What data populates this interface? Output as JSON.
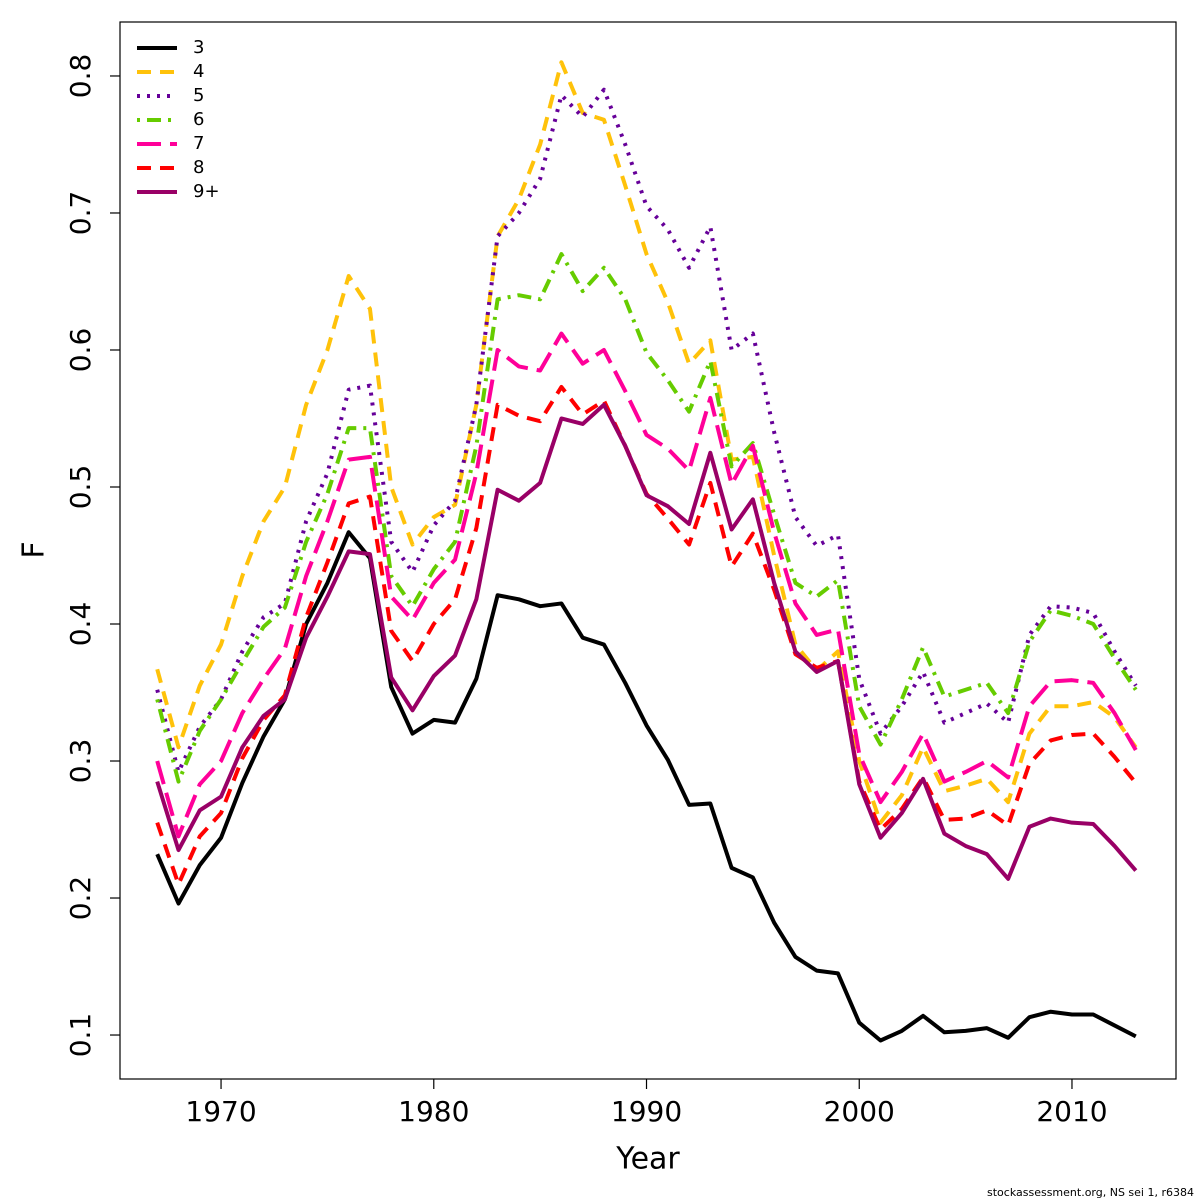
{
  "chart_data": {
    "type": "line",
    "x_label": "Year",
    "y_label": "F",
    "caption": "stockassessment.org, NS sei 1, r6384",
    "x": [
      1967,
      1968,
      1969,
      1970,
      1971,
      1972,
      1973,
      1974,
      1975,
      1976,
      1977,
      1978,
      1979,
      1980,
      1981,
      1982,
      1983,
      1984,
      1985,
      1986,
      1987,
      1988,
      1989,
      1990,
      1991,
      1992,
      1993,
      1994,
      1995,
      1996,
      1997,
      1998,
      1999,
      2000,
      2001,
      2002,
      2003,
      2004,
      2005,
      2006,
      2007,
      2008,
      2009,
      2010,
      2011,
      2012,
      2013
    ],
    "xlim": [
      1965.25,
      2014.89
    ],
    "xticks": [
      1970,
      1980,
      1990,
      2000,
      2010
    ],
    "ylim": [
      0.0679,
      0.8394
    ],
    "yticks": [
      0.1,
      0.2,
      0.3,
      0.4,
      0.5,
      0.6,
      0.7,
      0.8
    ],
    "legend": "top-left",
    "series": [
      {
        "name": "3",
        "color": "#000000",
        "linestyle": "solid",
        "values": [
          0.232,
          0.196,
          0.224,
          0.244,
          0.284,
          0.318,
          0.345,
          0.4,
          0.43,
          0.467,
          0.448,
          0.354,
          0.32,
          0.33,
          0.328,
          0.36,
          0.421,
          0.418,
          0.413,
          0.415,
          0.39,
          0.385,
          0.357,
          0.326,
          0.301,
          0.268,
          0.269,
          0.222,
          0.215,
          0.182,
          0.157,
          0.147,
          0.145,
          0.109,
          0.096,
          0.103,
          0.114,
          0.102,
          0.103,
          0.105,
          0.098,
          0.113,
          0.117,
          0.115,
          0.115,
          0.107,
          0.099
        ]
      },
      {
        "name": "4",
        "color": "#ffc20a",
        "linestyle": "dashed",
        "values": [
          0.367,
          0.31,
          0.355,
          0.385,
          0.435,
          0.475,
          0.5,
          0.56,
          0.6,
          0.654,
          0.63,
          0.5,
          0.458,
          0.478,
          0.487,
          0.56,
          0.683,
          0.71,
          0.75,
          0.81,
          0.773,
          0.768,
          0.72,
          0.67,
          0.635,
          0.59,
          0.607,
          0.52,
          0.522,
          0.45,
          0.385,
          0.366,
          0.38,
          0.3,
          0.255,
          0.275,
          0.31,
          0.278,
          0.282,
          0.287,
          0.27,
          0.32,
          0.34,
          0.34,
          0.343,
          0.332,
          0.31
        ]
      },
      {
        "name": "5",
        "color": "#660099",
        "linestyle": "dotted",
        "values": [
          0.352,
          0.292,
          0.325,
          0.345,
          0.38,
          0.405,
          0.415,
          0.475,
          0.51,
          0.571,
          0.574,
          0.46,
          0.438,
          0.472,
          0.49,
          0.56,
          0.683,
          0.7,
          0.725,
          0.786,
          0.77,
          0.79,
          0.75,
          0.705,
          0.688,
          0.66,
          0.69,
          0.6,
          0.612,
          0.54,
          0.478,
          0.457,
          0.465,
          0.36,
          0.32,
          0.34,
          0.365,
          0.328,
          0.335,
          0.342,
          0.328,
          0.392,
          0.413,
          0.412,
          0.408,
          0.38,
          0.355
        ]
      },
      {
        "name": "6",
        "color": "#66cc00",
        "linestyle": "dashdot",
        "values": [
          0.345,
          0.285,
          0.322,
          0.345,
          0.372,
          0.398,
          0.412,
          0.46,
          0.495,
          0.543,
          0.543,
          0.435,
          0.413,
          0.44,
          0.46,
          0.53,
          0.637,
          0.64,
          0.637,
          0.67,
          0.643,
          0.66,
          0.637,
          0.598,
          0.578,
          0.555,
          0.592,
          0.515,
          0.532,
          0.48,
          0.43,
          0.42,
          0.432,
          0.34,
          0.312,
          0.345,
          0.383,
          0.347,
          0.352,
          0.357,
          0.335,
          0.387,
          0.41,
          0.406,
          0.4,
          0.375,
          0.352
        ]
      },
      {
        "name": "7",
        "color": "#ff0099",
        "linestyle": "longdash",
        "values": [
          0.3,
          0.245,
          0.283,
          0.3,
          0.335,
          0.36,
          0.382,
          0.435,
          0.475,
          0.52,
          0.522,
          0.42,
          0.403,
          0.43,
          0.447,
          0.51,
          0.6,
          0.588,
          0.585,
          0.612,
          0.59,
          0.6,
          0.57,
          0.538,
          0.528,
          0.512,
          0.565,
          0.502,
          0.53,
          0.467,
          0.415,
          0.392,
          0.396,
          0.305,
          0.27,
          0.292,
          0.32,
          0.285,
          0.292,
          0.3,
          0.288,
          0.34,
          0.358,
          0.359,
          0.357,
          0.335,
          0.308
        ]
      },
      {
        "name": "8",
        "color": "#ff0000",
        "linestyle": "dashed",
        "values": [
          0.255,
          0.21,
          0.245,
          0.262,
          0.302,
          0.33,
          0.348,
          0.405,
          0.445,
          0.488,
          0.493,
          0.395,
          0.373,
          0.4,
          0.418,
          0.47,
          0.56,
          0.552,
          0.548,
          0.573,
          0.553,
          0.563,
          0.53,
          0.495,
          0.477,
          0.458,
          0.503,
          0.442,
          0.466,
          0.425,
          0.378,
          0.368,
          0.373,
          0.285,
          0.25,
          0.265,
          0.288,
          0.257,
          0.258,
          0.264,
          0.253,
          0.298,
          0.315,
          0.319,
          0.32,
          0.303,
          0.284
        ]
      },
      {
        "name": "9+",
        "color": "#990066",
        "linestyle": "solid",
        "values": [
          0.285,
          0.235,
          0.264,
          0.274,
          0.31,
          0.333,
          0.345,
          0.39,
          0.42,
          0.453,
          0.451,
          0.361,
          0.337,
          0.362,
          0.377,
          0.418,
          0.498,
          0.49,
          0.503,
          0.55,
          0.546,
          0.56,
          0.53,
          0.494,
          0.486,
          0.473,
          0.525,
          0.469,
          0.491,
          0.43,
          0.38,
          0.365,
          0.373,
          0.283,
          0.244,
          0.262,
          0.287,
          0.247,
          0.238,
          0.232,
          0.214,
          0.252,
          0.258,
          0.255,
          0.254,
          0.238,
          0.22
        ]
      }
    ]
  }
}
